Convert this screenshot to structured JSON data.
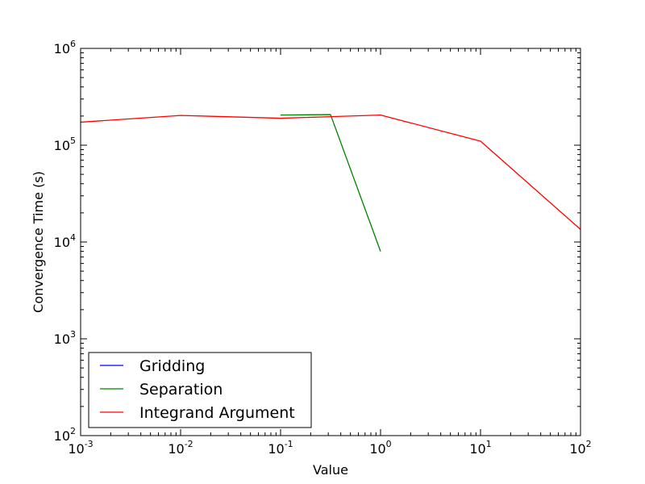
{
  "chart_data": {
    "type": "line",
    "xlabel": "Value",
    "ylabel": "Convergence Time (s)",
    "xscale": "log",
    "yscale": "log",
    "xlim": [
      0.001,
      100
    ],
    "ylim": [
      100,
      1000000
    ],
    "x_ticks": [
      {
        "value": 0.001,
        "base": "10",
        "exp": "-3"
      },
      {
        "value": 0.01,
        "base": "10",
        "exp": "-2"
      },
      {
        "value": 0.1,
        "base": "10",
        "exp": "-1"
      },
      {
        "value": 1,
        "base": "10",
        "exp": "0"
      },
      {
        "value": 10,
        "base": "10",
        "exp": "1"
      },
      {
        "value": 100,
        "base": "10",
        "exp": "2"
      }
    ],
    "y_ticks": [
      {
        "value": 100,
        "base": "10",
        "exp": "2"
      },
      {
        "value": 1000,
        "base": "10",
        "exp": "3"
      },
      {
        "value": 10000,
        "base": "10",
        "exp": "4"
      },
      {
        "value": 100000,
        "base": "10",
        "exp": "5"
      },
      {
        "value": 1000000,
        "base": "10",
        "exp": "6"
      }
    ],
    "grid": false,
    "legend_position": "lower-left",
    "series": [
      {
        "name": "Gridding",
        "color": "#0000ff",
        "x": [],
        "y": []
      },
      {
        "name": "Separation",
        "color": "#008000",
        "x": [
          0.1,
          0.316,
          1
        ],
        "y": [
          205000,
          207000,
          8000
        ]
      },
      {
        "name": "Integrand Argument",
        "color": "#ff0000",
        "x": [
          0.001,
          0.01,
          0.1,
          0.316,
          1,
          10,
          100
        ],
        "y": [
          173000,
          203000,
          190000,
          197000,
          205000,
          110000,
          13500
        ]
      }
    ]
  }
}
